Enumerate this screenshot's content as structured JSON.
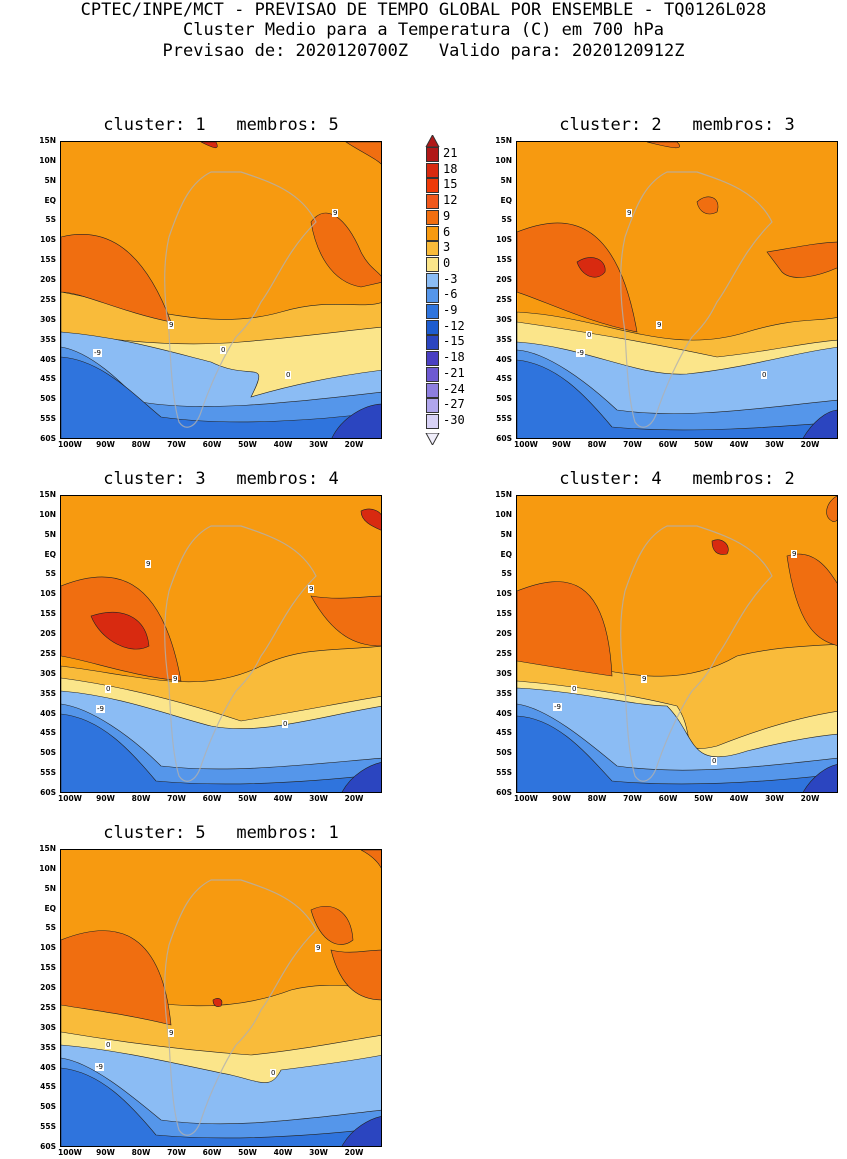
{
  "header": {
    "line1": "CPTEC/INPE/MCT - PREVISAO DE TEMPO GLOBAL POR ENSEMBLE - TQ0126L028",
    "line2": "Cluster Medio para a Temperatura (C) em 700 hPa",
    "line3": "Previsao de: 2020120700Z   Valido para: 2020120912Z"
  },
  "axes": {
    "lat_labels": [
      "15N",
      "10N",
      "5N",
      "EQ",
      "5S",
      "10S",
      "15S",
      "20S",
      "25S",
      "30S",
      "35S",
      "40S",
      "45S",
      "50S",
      "55S",
      "60S"
    ],
    "lon_labels": [
      "100W",
      "90W",
      "80W",
      "70W",
      "60W",
      "50W",
      "40W",
      "30W",
      "20W"
    ]
  },
  "colorbar": {
    "labels": [
      "21",
      "18",
      "15",
      "12",
      "9",
      "6",
      "3",
      "0",
      "-3",
      "-6",
      "-9",
      "-12",
      "-15",
      "-18",
      "-21",
      "-24",
      "-27",
      "-30"
    ],
    "colors": [
      "#b01818",
      "#d82a10",
      "#ee3a08",
      "#f0581c",
      "#f06e10",
      "#f79a10",
      "#f9bb3a",
      "#fbe58a",
      "#8bbcf4",
      "#5596ea",
      "#2f74dd",
      "#1e5ccf",
      "#2b45c0",
      "#4a3fc2",
      "#6e5ad2",
      "#8e7fe0",
      "#b0a6ec",
      "#d8d2f6"
    ]
  },
  "panels": [
    {
      "title": "cluster: 1   membros: 5",
      "contour_labels": [
        "9",
        "9",
        "0",
        "0",
        "-9"
      ]
    },
    {
      "title": "cluster: 2   membros: 3",
      "contour_labels": [
        "9",
        "9",
        "0",
        "0",
        "-9"
      ]
    },
    {
      "title": "cluster: 3   membros: 4",
      "contour_labels": [
        "9",
        "9",
        "9",
        "0",
        "0",
        "-9"
      ]
    },
    {
      "title": "cluster: 4   membros: 2",
      "contour_labels": [
        "9",
        "9",
        "0",
        "0",
        "-9"
      ]
    },
    {
      "title": "cluster: 5   membros: 1",
      "contour_labels": [
        "9",
        "9",
        "0",
        "0",
        "-9"
      ]
    }
  ]
}
